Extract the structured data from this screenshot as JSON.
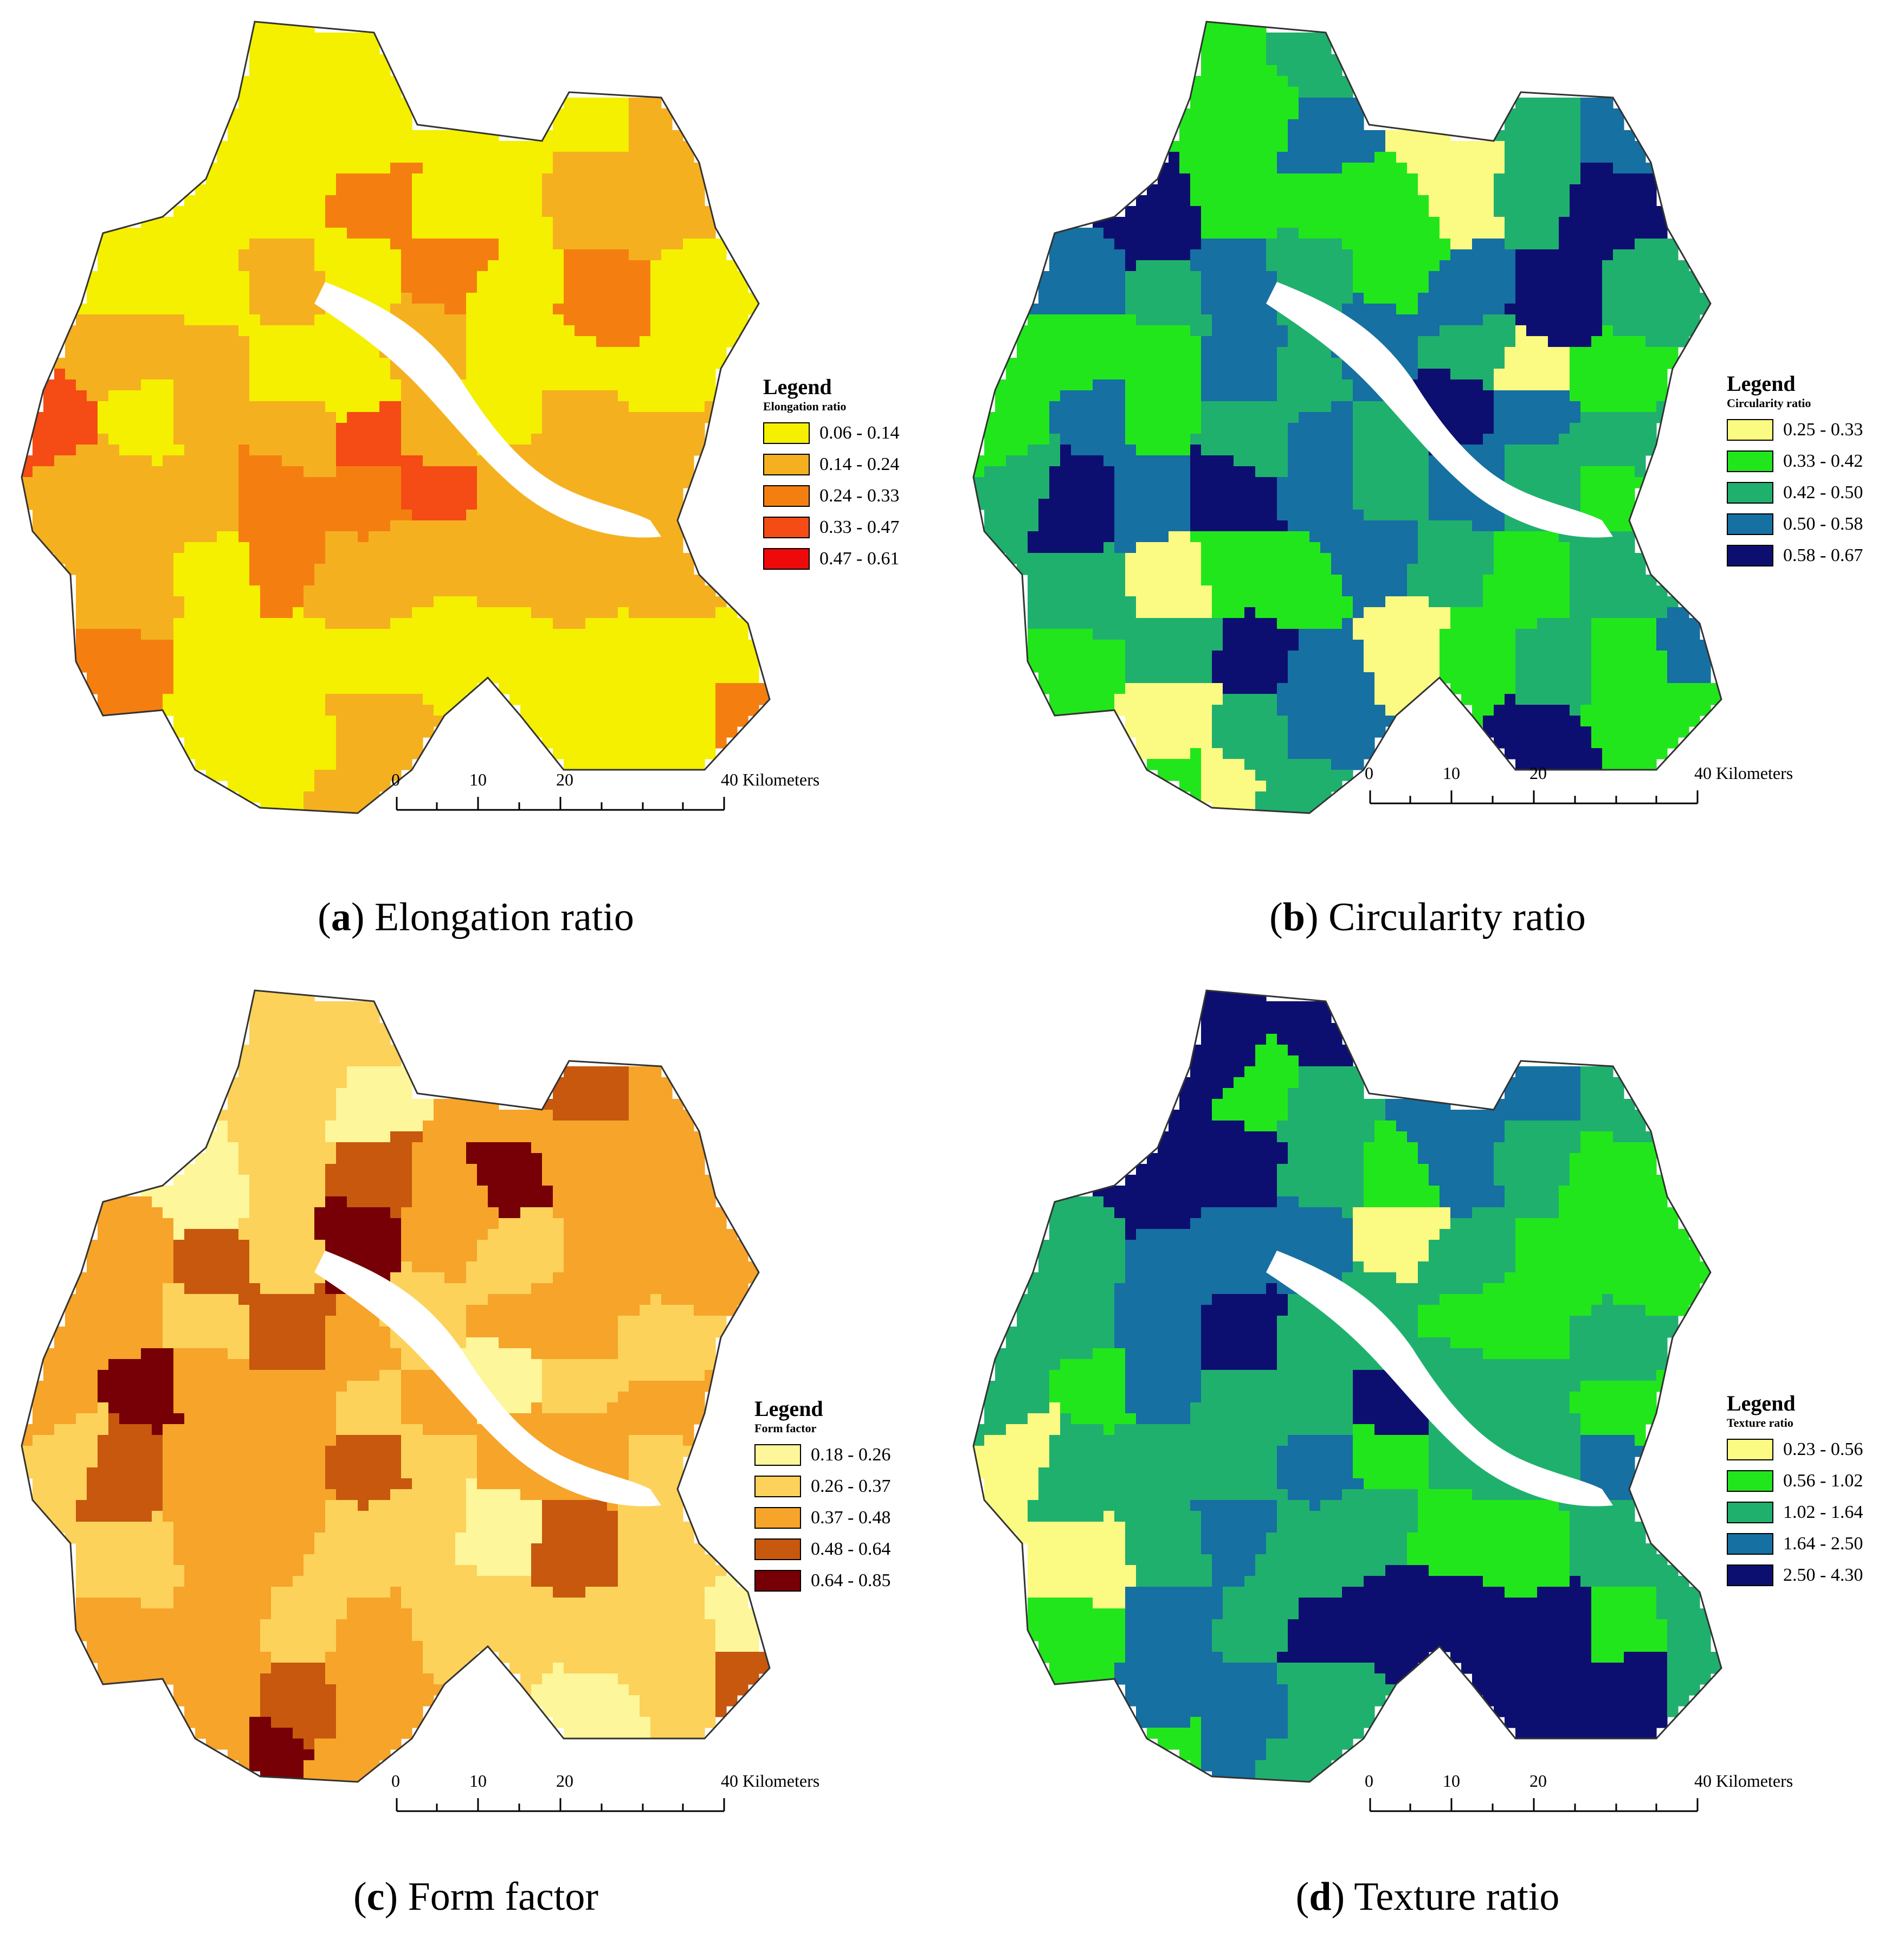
{
  "panels": [
    {
      "id": "a",
      "caption_letter": "a",
      "caption_text": "Elongation ratio",
      "legend_title": "Legend",
      "legend_subtitle": "Elongation ratio",
      "classes": [
        {
          "label": "0.06 - 0.14",
          "color": "#f4f000"
        },
        {
          "label": "0.14 - 0.24",
          "color": "#f5b020"
        },
        {
          "label": "0.24 - 0.33",
          "color": "#f47f10"
        },
        {
          "label": "0.33 - 0.47",
          "color": "#f44c14"
        },
        {
          "label": "0.47 - 0.61",
          "color": "#ee0a0a"
        }
      ],
      "scale": {
        "ticks": [
          "0",
          "10",
          "20"
        ],
        "end_label": "40 Kilometers"
      }
    },
    {
      "id": "b",
      "caption_letter": "b",
      "caption_text": "Circularity ratio",
      "legend_title": "Legend",
      "legend_subtitle": "Circularity ratio",
      "classes": [
        {
          "label": "0.25 - 0.33",
          "color": "#fbfa82"
        },
        {
          "label": "0.33 - 0.42",
          "color": "#22e61c"
        },
        {
          "label": "0.42 - 0.50",
          "color": "#20b06e"
        },
        {
          "label": "0.50 - 0.58",
          "color": "#1670a2"
        },
        {
          "label": "0.58 - 0.67",
          "color": "#0c0f70"
        }
      ],
      "scale": {
        "ticks": [
          "0",
          "10",
          "20"
        ],
        "end_label": "40 Kilometers"
      }
    },
    {
      "id": "c",
      "caption_letter": "c",
      "caption_text": "Form factor",
      "legend_title": "Legend",
      "legend_subtitle": "Form factor",
      "classes": [
        {
          "label": "0.18 - 0.26",
          "color": "#fdf69a"
        },
        {
          "label": "0.26 - 0.37",
          "color": "#fcd25a"
        },
        {
          "label": "0.37 - 0.48",
          "color": "#f6a42a"
        },
        {
          "label": "0.48 - 0.64",
          "color": "#c7580e"
        },
        {
          "label": "0.64 - 0.85",
          "color": "#760005"
        }
      ],
      "scale": {
        "ticks": [
          "0",
          "10",
          "20"
        ],
        "end_label": "40 Kilometers"
      }
    },
    {
      "id": "d",
      "caption_letter": "d",
      "caption_text": "Texture ratio",
      "legend_title": "Legend",
      "legend_subtitle": "Texture ratio",
      "classes": [
        {
          "label": "0.23 - 0.56",
          "color": "#fbfa82"
        },
        {
          "label": "0.56 - 1.02",
          "color": "#22e61c"
        },
        {
          "label": "1.02 - 1.64",
          "color": "#20b06e"
        },
        {
          "label": "1.64 - 2.50",
          "color": "#1670a2"
        },
        {
          "label": "2.50 - 4.30",
          "color": "#0c0f70"
        }
      ],
      "scale": {
        "ticks": [
          "0",
          "10",
          "20"
        ],
        "end_label": "40 Kilometers"
      }
    }
  ],
  "basin_classes": {
    "a": [
      0,
      0,
      0,
      0,
      0,
      0,
      1,
      0,
      0,
      2,
      0,
      0,
      1,
      1,
      0,
      0,
      1,
      0,
      2,
      0,
      2,
      0,
      1,
      1,
      0,
      0,
      1,
      0,
      0,
      0,
      3,
      0,
      1,
      1,
      3,
      1,
      0,
      1,
      1,
      1,
      1,
      1,
      2,
      2,
      3,
      1,
      1,
      1,
      1,
      0,
      2,
      1,
      1,
      1,
      1,
      1,
      2,
      0,
      0,
      0,
      0
    ],
    "b": [
      1,
      2,
      1,
      3,
      0,
      2,
      3,
      4,
      1,
      1,
      1,
      0,
      2,
      4,
      3,
      2,
      3,
      2,
      1,
      3,
      4,
      2,
      1,
      1,
      3,
      2,
      3,
      2,
      0,
      1,
      1,
      3,
      1,
      2,
      3,
      2,
      4,
      3,
      2,
      2,
      4,
      3,
      4,
      3,
      2,
      3,
      2,
      1,
      2,
      0,
      1,
      1,
      3,
      2,
      1,
      2,
      1,
      2,
      4,
      3,
      0
    ],
    "c": [
      1,
      1,
      1,
      0,
      2,
      3,
      2,
      0,
      1,
      3,
      2,
      4,
      2,
      2,
      2,
      3,
      1,
      4,
      2,
      1,
      2,
      2,
      2,
      1,
      3,
      2,
      1,
      2,
      2,
      1,
      2,
      4,
      2,
      2,
      1,
      2,
      0,
      1,
      2,
      1,
      3,
      2,
      2,
      3,
      1,
      2,
      2,
      1,
      1,
      2,
      2,
      1,
      1,
      0,
      3,
      1,
      2,
      2,
      1,
      2,
      1
    ],
    "d": [
      4,
      4,
      1,
      2,
      3,
      3,
      2,
      4,
      4,
      2,
      1,
      3,
      2,
      1,
      2,
      3,
      3,
      3,
      0,
      2,
      1,
      1,
      2,
      3,
      4,
      2,
      2,
      1,
      1,
      2,
      2,
      1,
      3,
      2,
      2,
      4,
      2,
      2,
      1,
      0,
      2,
      2,
      2,
      3,
      1,
      2,
      2,
      3,
      0,
      2,
      3,
      2,
      2,
      1,
      1,
      2,
      1,
      3,
      2,
      4,
      4
    ]
  }
}
